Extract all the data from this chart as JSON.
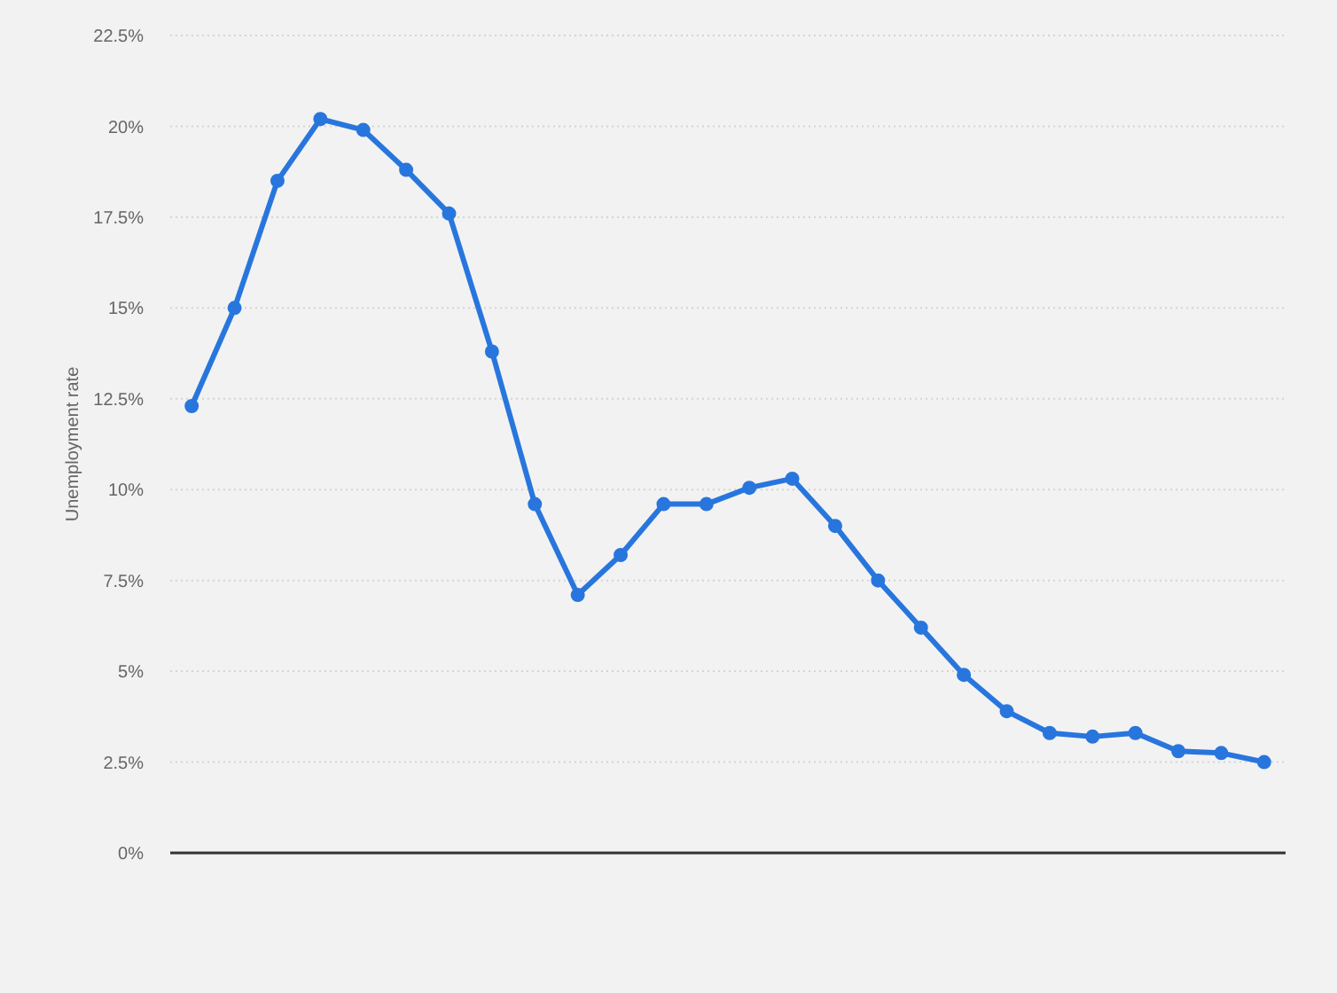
{
  "chart_data": {
    "type": "line",
    "ylabel": "Unemployment rate",
    "categories": [
      null,
      null,
      null,
      null,
      null,
      null,
      null,
      null,
      null,
      null,
      null,
      null,
      null,
      null,
      null,
      null,
      null,
      null,
      null,
      null,
      null,
      null,
      null,
      null,
      null,
      null
    ],
    "series": [
      {
        "color": "#2876dd",
        "values": [
          12.3,
          15.0,
          18.5,
          20.2,
          19.9,
          18.8,
          17.6,
          13.8,
          9.6,
          7.1,
          8.2,
          9.6,
          9.6,
          10.05,
          10.3,
          9.0,
          7.5,
          6.2,
          4.9,
          3.9,
          3.3,
          3.2,
          3.3,
          2.8,
          2.75,
          2.5
        ]
      }
    ],
    "ylim": [
      0,
      22.5
    ],
    "yticks": [
      {
        "value": 0,
        "label": "0%"
      },
      {
        "value": 2.5,
        "label": "2.5%"
      },
      {
        "value": 5,
        "label": "5%"
      },
      {
        "value": 7.5,
        "label": "7.5%"
      },
      {
        "value": 10,
        "label": "10%"
      },
      {
        "value": 12.5,
        "label": "12.5%"
      },
      {
        "value": 15,
        "label": "15%"
      },
      {
        "value": 17.5,
        "label": "17.5%"
      },
      {
        "value": 20,
        "label": "20%"
      },
      {
        "value": 22.5,
        "label": "22.5%"
      }
    ],
    "grid": "y",
    "tick_labels": "y",
    "marker": "circle",
    "line_style": "solid"
  }
}
